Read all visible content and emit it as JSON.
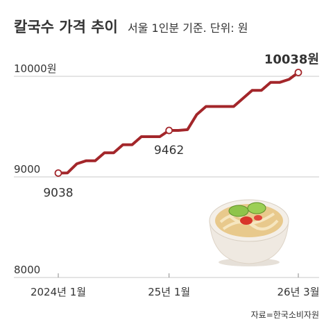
{
  "chart_data": {
    "type": "line",
    "title": "칼국수 가격 추이",
    "subtitle": "서울 1인분 기준. 단위: 원",
    "source": "자료=한국소비자원",
    "categories": [
      "2024년 1월",
      null,
      null,
      null,
      null,
      null,
      null,
      null,
      null,
      null,
      null,
      null,
      "25년 1월",
      null,
      null,
      null,
      null,
      null,
      null,
      null,
      null,
      null,
      null,
      null,
      null,
      null,
      "26년 3월"
    ],
    "values": [
      9038,
      9040,
      9130,
      9160,
      9160,
      9240,
      9240,
      9320,
      9320,
      9400,
      9400,
      9400,
      9462,
      9462,
      9470,
      9620,
      9700,
      9700,
      9700,
      9700,
      9780,
      9860,
      9860,
      9940,
      9940,
      9970,
      10038
    ],
    "value_labels": [
      "9038",
      null,
      null,
      null,
      null,
      null,
      null,
      null,
      null,
      null,
      null,
      null,
      "9462",
      null,
      null,
      null,
      null,
      null,
      null,
      null,
      null,
      null,
      null,
      null,
      null,
      null,
      "10038원"
    ],
    "color": "#a3262a",
    "ylim": [
      8000,
      10200
    ],
    "yticks": [
      8000,
      9000,
      {
        "value": 10000,
        "label": "10000원"
      }
    ],
    "grid": true
  }
}
